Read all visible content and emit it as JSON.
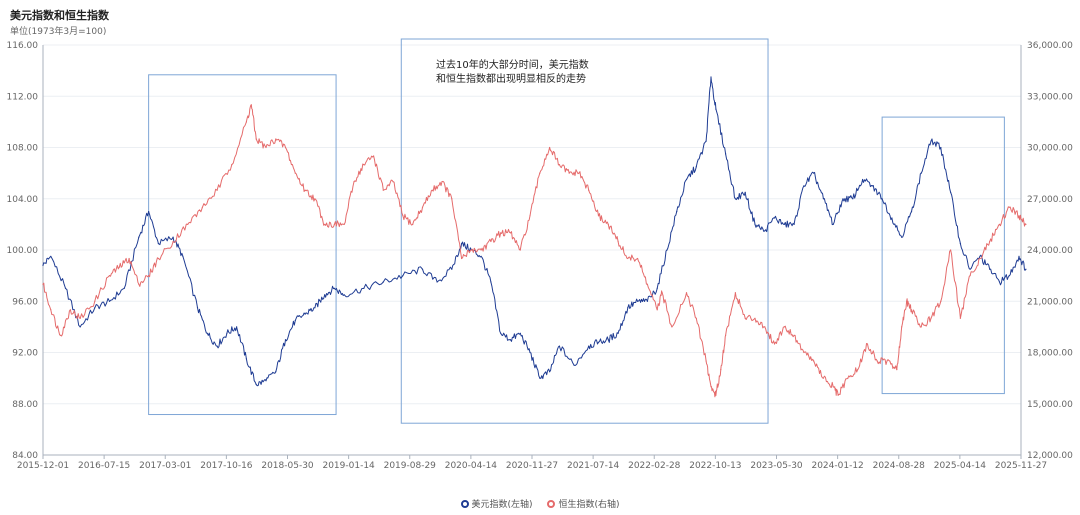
{
  "title": "美元指数和恒生指数",
  "subtitle": "单位(1973年3月=100)",
  "annotation": [
    "过去10年的大部分时间，美元指数",
    "和恒生指数都出现明显相反的走势"
  ],
  "colors": {
    "usd": "#1f3c93",
    "hsi": "#e56b6b",
    "box": "#7ea6d6",
    "axis": "#aab2bd",
    "text": "#666666"
  },
  "legend": [
    {
      "label": "美元指数(左轴)",
      "color": "#1f3c93"
    },
    {
      "label": "恒生指数(右轴)",
      "color": "#e56b6b"
    }
  ],
  "chart_data": {
    "type": "line",
    "title": "美元指数和恒生指数",
    "x_tick_labels": [
      "2015-12-01",
      "2016-07-15",
      "2017-03-01",
      "2017-10-16",
      "2018-05-30",
      "2019-01-14",
      "2019-08-29",
      "2020-04-14",
      "2020-11-27",
      "2021-07-14",
      "2022-02-28",
      "2022-10-13",
      "2023-05-30",
      "2024-01-12",
      "2024-08-28",
      "2025-04-14",
      "2025-11-27"
    ],
    "y_left": {
      "min": 84,
      "max": 116,
      "ticks": [
        "84.00",
        "88.00",
        "92.00",
        "96.00",
        "100.00",
        "104.00",
        "108.00",
        "112.00",
        "116.00"
      ]
    },
    "y_right": {
      "min": 12000,
      "max": 36000,
      "ticks": [
        "12,000.00",
        "15,000.00",
        "18,000.00",
        "21,000.00",
        "24,000.00",
        "27,000.00",
        "30,000.00",
        "33,000.00",
        "36,000.00"
      ]
    },
    "highlight_periods": [
      {
        "from": "2017-01",
        "to": "2018-12"
      },
      {
        "from": "2019-08",
        "to": "2023-05"
      },
      {
        "from": "2024-07",
        "to": "2025-10"
      }
    ],
    "series": [
      {
        "name": "美元指数(左轴)",
        "axis": "left",
        "points": [
          [
            2015.92,
            98.8
          ],
          [
            2016.0,
            99.5
          ],
          [
            2016.15,
            97.0
          ],
          [
            2016.3,
            94.0
          ],
          [
            2016.45,
            95.5
          ],
          [
            2016.6,
            96.0
          ],
          [
            2016.75,
            97.0
          ],
          [
            2016.9,
            101.0
          ],
          [
            2017.0,
            103.0
          ],
          [
            2017.1,
            100.5
          ],
          [
            2017.25,
            101.0
          ],
          [
            2017.35,
            99.5
          ],
          [
            2017.5,
            95.5
          ],
          [
            2017.6,
            93.5
          ],
          [
            2017.7,
            92.5
          ],
          [
            2017.8,
            93.5
          ],
          [
            2017.9,
            94.0
          ],
          [
            2018.0,
            91.5
          ],
          [
            2018.1,
            89.5
          ],
          [
            2018.2,
            89.8
          ],
          [
            2018.3,
            90.5
          ],
          [
            2018.4,
            93.0
          ],
          [
            2018.5,
            94.5
          ],
          [
            2018.6,
            95.0
          ],
          [
            2018.7,
            95.5
          ],
          [
            2018.8,
            96.5
          ],
          [
            2018.9,
            97.0
          ],
          [
            2019.0,
            96.5
          ],
          [
            2019.2,
            97.0
          ],
          [
            2019.4,
            97.5
          ],
          [
            2019.6,
            98.0
          ],
          [
            2019.8,
            98.5
          ],
          [
            2019.95,
            97.5
          ],
          [
            2020.1,
            98.5
          ],
          [
            2020.2,
            100.5
          ],
          [
            2020.3,
            100.0
          ],
          [
            2020.4,
            99.5
          ],
          [
            2020.5,
            97.5
          ],
          [
            2020.6,
            93.5
          ],
          [
            2020.7,
            93.0
          ],
          [
            2020.8,
            93.5
          ],
          [
            2020.9,
            92.0
          ],
          [
            2021.0,
            90.0
          ],
          [
            2021.1,
            90.5
          ],
          [
            2021.2,
            92.5
          ],
          [
            2021.35,
            91.0
          ],
          [
            2021.5,
            92.5
          ],
          [
            2021.6,
            92.8
          ],
          [
            2021.7,
            93.0
          ],
          [
            2021.8,
            93.5
          ],
          [
            2021.9,
            95.5
          ],
          [
            2022.0,
            96.0
          ],
          [
            2022.1,
            96.0
          ],
          [
            2022.2,
            97.0
          ],
          [
            2022.3,
            100.0
          ],
          [
            2022.4,
            103.0
          ],
          [
            2022.5,
            105.5
          ],
          [
            2022.6,
            106.5
          ],
          [
            2022.7,
            108.5
          ],
          [
            2022.75,
            113.5
          ],
          [
            2022.8,
            111.0
          ],
          [
            2022.9,
            107.5
          ],
          [
            2023.0,
            104.0
          ],
          [
            2023.1,
            104.5
          ],
          [
            2023.2,
            102.0
          ],
          [
            2023.3,
            101.5
          ],
          [
            2023.4,
            102.5
          ],
          [
            2023.5,
            102.0
          ],
          [
            2023.6,
            102.0
          ],
          [
            2023.7,
            105.0
          ],
          [
            2023.8,
            106.0
          ],
          [
            2023.9,
            104.0
          ],
          [
            2024.0,
            102.0
          ],
          [
            2024.1,
            104.0
          ],
          [
            2024.2,
            104.0
          ],
          [
            2024.3,
            105.5
          ],
          [
            2024.4,
            105.0
          ],
          [
            2024.5,
            104.0
          ],
          [
            2024.6,
            102.5
          ],
          [
            2024.7,
            101.0
          ],
          [
            2024.8,
            103.0
          ],
          [
            2024.9,
            106.0
          ],
          [
            2025.0,
            108.5
          ],
          [
            2025.1,
            108.0
          ],
          [
            2025.2,
            104.5
          ],
          [
            2025.3,
            100.5
          ],
          [
            2025.4,
            98.5
          ],
          [
            2025.5,
            99.5
          ],
          [
            2025.6,
            98.5
          ],
          [
            2025.7,
            97.5
          ],
          [
            2025.8,
            98.0
          ],
          [
            2025.9,
            99.5
          ],
          [
            2025.97,
            98.5
          ]
        ]
      },
      {
        "name": "恒生指数(右轴)",
        "axis": "right",
        "points": [
          [
            2015.92,
            22000
          ],
          [
            2016.0,
            20500
          ],
          [
            2016.1,
            19000
          ],
          [
            2016.2,
            20500
          ],
          [
            2016.3,
            20000
          ],
          [
            2016.45,
            21000
          ],
          [
            2016.6,
            22500
          ],
          [
            2016.7,
            23000
          ],
          [
            2016.8,
            23500
          ],
          [
            2016.9,
            22000
          ],
          [
            2017.0,
            22500
          ],
          [
            2017.1,
            23500
          ],
          [
            2017.25,
            24500
          ],
          [
            2017.4,
            25500
          ],
          [
            2017.55,
            26500
          ],
          [
            2017.7,
            27500
          ],
          [
            2017.85,
            29000
          ],
          [
            2018.0,
            31500
          ],
          [
            2018.05,
            32500
          ],
          [
            2018.1,
            30500
          ],
          [
            2018.2,
            30000
          ],
          [
            2018.3,
            30500
          ],
          [
            2018.4,
            30000
          ],
          [
            2018.5,
            28500
          ],
          [
            2018.6,
            27500
          ],
          [
            2018.7,
            27000
          ],
          [
            2018.8,
            25500
          ],
          [
            2018.9,
            25500
          ],
          [
            2019.0,
            25500
          ],
          [
            2019.1,
            28000
          ],
          [
            2019.2,
            29000
          ],
          [
            2019.3,
            29500
          ],
          [
            2019.4,
            27500
          ],
          [
            2019.5,
            28000
          ],
          [
            2019.6,
            26000
          ],
          [
            2019.7,
            25500
          ],
          [
            2019.8,
            26500
          ],
          [
            2019.9,
            27500
          ],
          [
            2020.0,
            28000
          ],
          [
            2020.1,
            27000
          ],
          [
            2020.2,
            23500
          ],
          [
            2020.3,
            24000
          ],
          [
            2020.4,
            24000
          ],
          [
            2020.5,
            24500
          ],
          [
            2020.6,
            25000
          ],
          [
            2020.7,
            25000
          ],
          [
            2020.8,
            24000
          ],
          [
            2020.9,
            26000
          ],
          [
            2021.0,
            28500
          ],
          [
            2021.1,
            30000
          ],
          [
            2021.2,
            29000
          ],
          [
            2021.3,
            28500
          ],
          [
            2021.4,
            28500
          ],
          [
            2021.5,
            27500
          ],
          [
            2021.6,
            26000
          ],
          [
            2021.7,
            25500
          ],
          [
            2021.8,
            24500
          ],
          [
            2021.9,
            23500
          ],
          [
            2022.0,
            23500
          ],
          [
            2022.1,
            22000
          ],
          [
            2022.2,
            20500
          ],
          [
            2022.25,
            21500
          ],
          [
            2022.35,
            19500
          ],
          [
            2022.5,
            21500
          ],
          [
            2022.6,
            20000
          ],
          [
            2022.7,
            17500
          ],
          [
            2022.75,
            16000
          ],
          [
            2022.8,
            15500
          ],
          [
            2022.85,
            17000
          ],
          [
            2022.9,
            19000
          ],
          [
            2023.0,
            21500
          ],
          [
            2023.1,
            20000
          ],
          [
            2023.2,
            20000
          ],
          [
            2023.3,
            19500
          ],
          [
            2023.4,
            18500
          ],
          [
            2023.5,
            19500
          ],
          [
            2023.6,
            19000
          ],
          [
            2023.7,
            18000
          ],
          [
            2023.8,
            17500
          ],
          [
            2023.9,
            16500
          ],
          [
            2024.0,
            16000
          ],
          [
            2024.05,
            15500
          ],
          [
            2024.15,
            16500
          ],
          [
            2024.25,
            17000
          ],
          [
            2024.35,
            18500
          ],
          [
            2024.45,
            17500
          ],
          [
            2024.55,
            17500
          ],
          [
            2024.65,
            17000
          ],
          [
            2024.7,
            19500
          ],
          [
            2024.75,
            21000
          ],
          [
            2024.8,
            20500
          ],
          [
            2024.9,
            19500
          ],
          [
            2025.0,
            20000
          ],
          [
            2025.1,
            21000
          ],
          [
            2025.2,
            24000
          ],
          [
            2025.3,
            20000
          ],
          [
            2025.4,
            22500
          ],
          [
            2025.5,
            23500
          ],
          [
            2025.6,
            24500
          ],
          [
            2025.7,
            25500
          ],
          [
            2025.8,
            26500
          ],
          [
            2025.9,
            26000
          ],
          [
            2025.97,
            25500
          ]
        ]
      }
    ]
  }
}
